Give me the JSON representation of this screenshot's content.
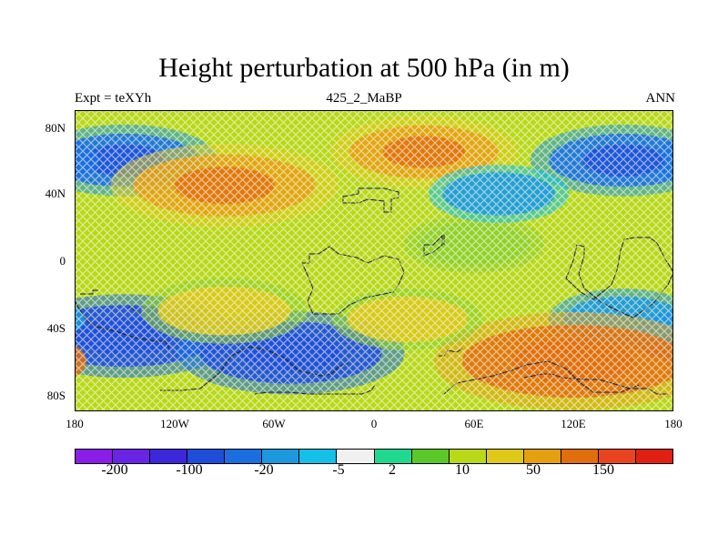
{
  "title": "Height perturbation at 500 hPa (in m)",
  "subtitle_left": "Expt = teXYh",
  "subtitle_center": "425_2_MaBP",
  "subtitle_right": "ANN",
  "y_ticks": [
    "80N",
    "40N",
    "0",
    "40S",
    "80S"
  ],
  "x_ticks": [
    "180",
    "120W",
    "60W",
    "0",
    "60E",
    "120E",
    "180"
  ],
  "colorbar": {
    "colors": [
      "#8a1ee8",
      "#6a24e4",
      "#3c28d8",
      "#1e4ed8",
      "#1a6ee0",
      "#1c98dc",
      "#14c0e8",
      "#f0f0f0",
      "#20d890",
      "#5ac828",
      "#b8d818",
      "#e0c818",
      "#e4a010",
      "#e06e0c",
      "#e84420",
      "#e02010"
    ],
    "labels": [
      "-200",
      "-100",
      "-20",
      "-5",
      "2",
      "10",
      "50",
      "150"
    ]
  },
  "map_data": {
    "field": "500 hPa height perturbation",
    "units": "m",
    "lon_range": [
      -180,
      180
    ],
    "lat_range": [
      -90,
      90
    ],
    "features": [
      {
        "name": "negative",
        "lon": -150,
        "lat": 60,
        "value": -60
      },
      {
        "name": "negative",
        "lon": 150,
        "lat": 60,
        "value": -60
      },
      {
        "name": "positive",
        "lon": -90,
        "lat": 45,
        "value": 100
      },
      {
        "name": "positive",
        "lon": 30,
        "lat": 65,
        "value": 60
      },
      {
        "name": "positive",
        "lon": 60,
        "lat": 10,
        "value": 15
      },
      {
        "name": "negative",
        "lon": 75,
        "lat": 40,
        "value": -15
      },
      {
        "name": "negative",
        "lon": -150,
        "lat": -45,
        "value": -100
      },
      {
        "name": "negative",
        "lon": -50,
        "lat": -55,
        "value": -100
      },
      {
        "name": "negative",
        "lon": 150,
        "lat": -35,
        "value": -25
      },
      {
        "name": "positive",
        "lon": 120,
        "lat": -60,
        "value": 150
      },
      {
        "name": "positive",
        "lon": -90,
        "lat": -30,
        "value": 40
      },
      {
        "name": "positive",
        "lon": 20,
        "lat": -35,
        "value": 25
      }
    ]
  }
}
